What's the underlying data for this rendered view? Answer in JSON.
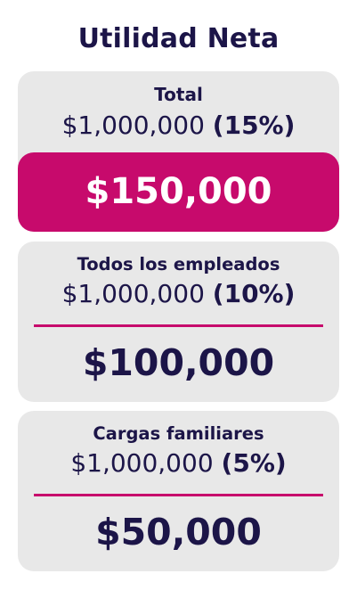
{
  "title": "Utilidad Neta",
  "cards": [
    {
      "label": "Total",
      "base": "$1,000,000",
      "percent": "(15%)",
      "result": "$150,000"
    },
    {
      "label": "Todos los empleados",
      "base": "$1,000,000",
      "percent": "(10%)",
      "result": "$100,000"
    },
    {
      "label": "Cargas familiares",
      "base": "$1,000,000",
      "percent": "(5%)",
      "result": "$50,000"
    }
  ],
  "colors": {
    "accent": "#c70a6c",
    "text": "#1c1548",
    "card_bg": "#e8e8e8"
  }
}
